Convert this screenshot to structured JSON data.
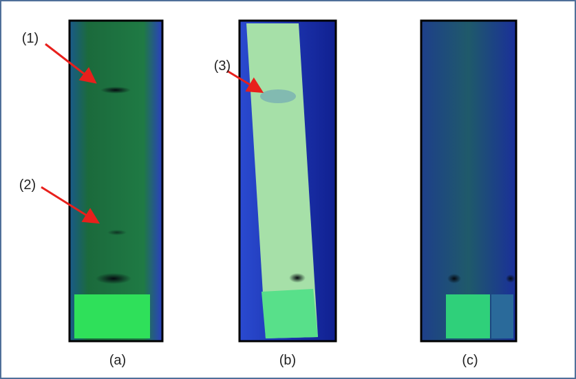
{
  "labels": {
    "arrows": [
      "(1)",
      "(2)",
      "(3)"
    ],
    "panels": [
      "(a)",
      "(b)",
      "(c)"
    ]
  }
}
